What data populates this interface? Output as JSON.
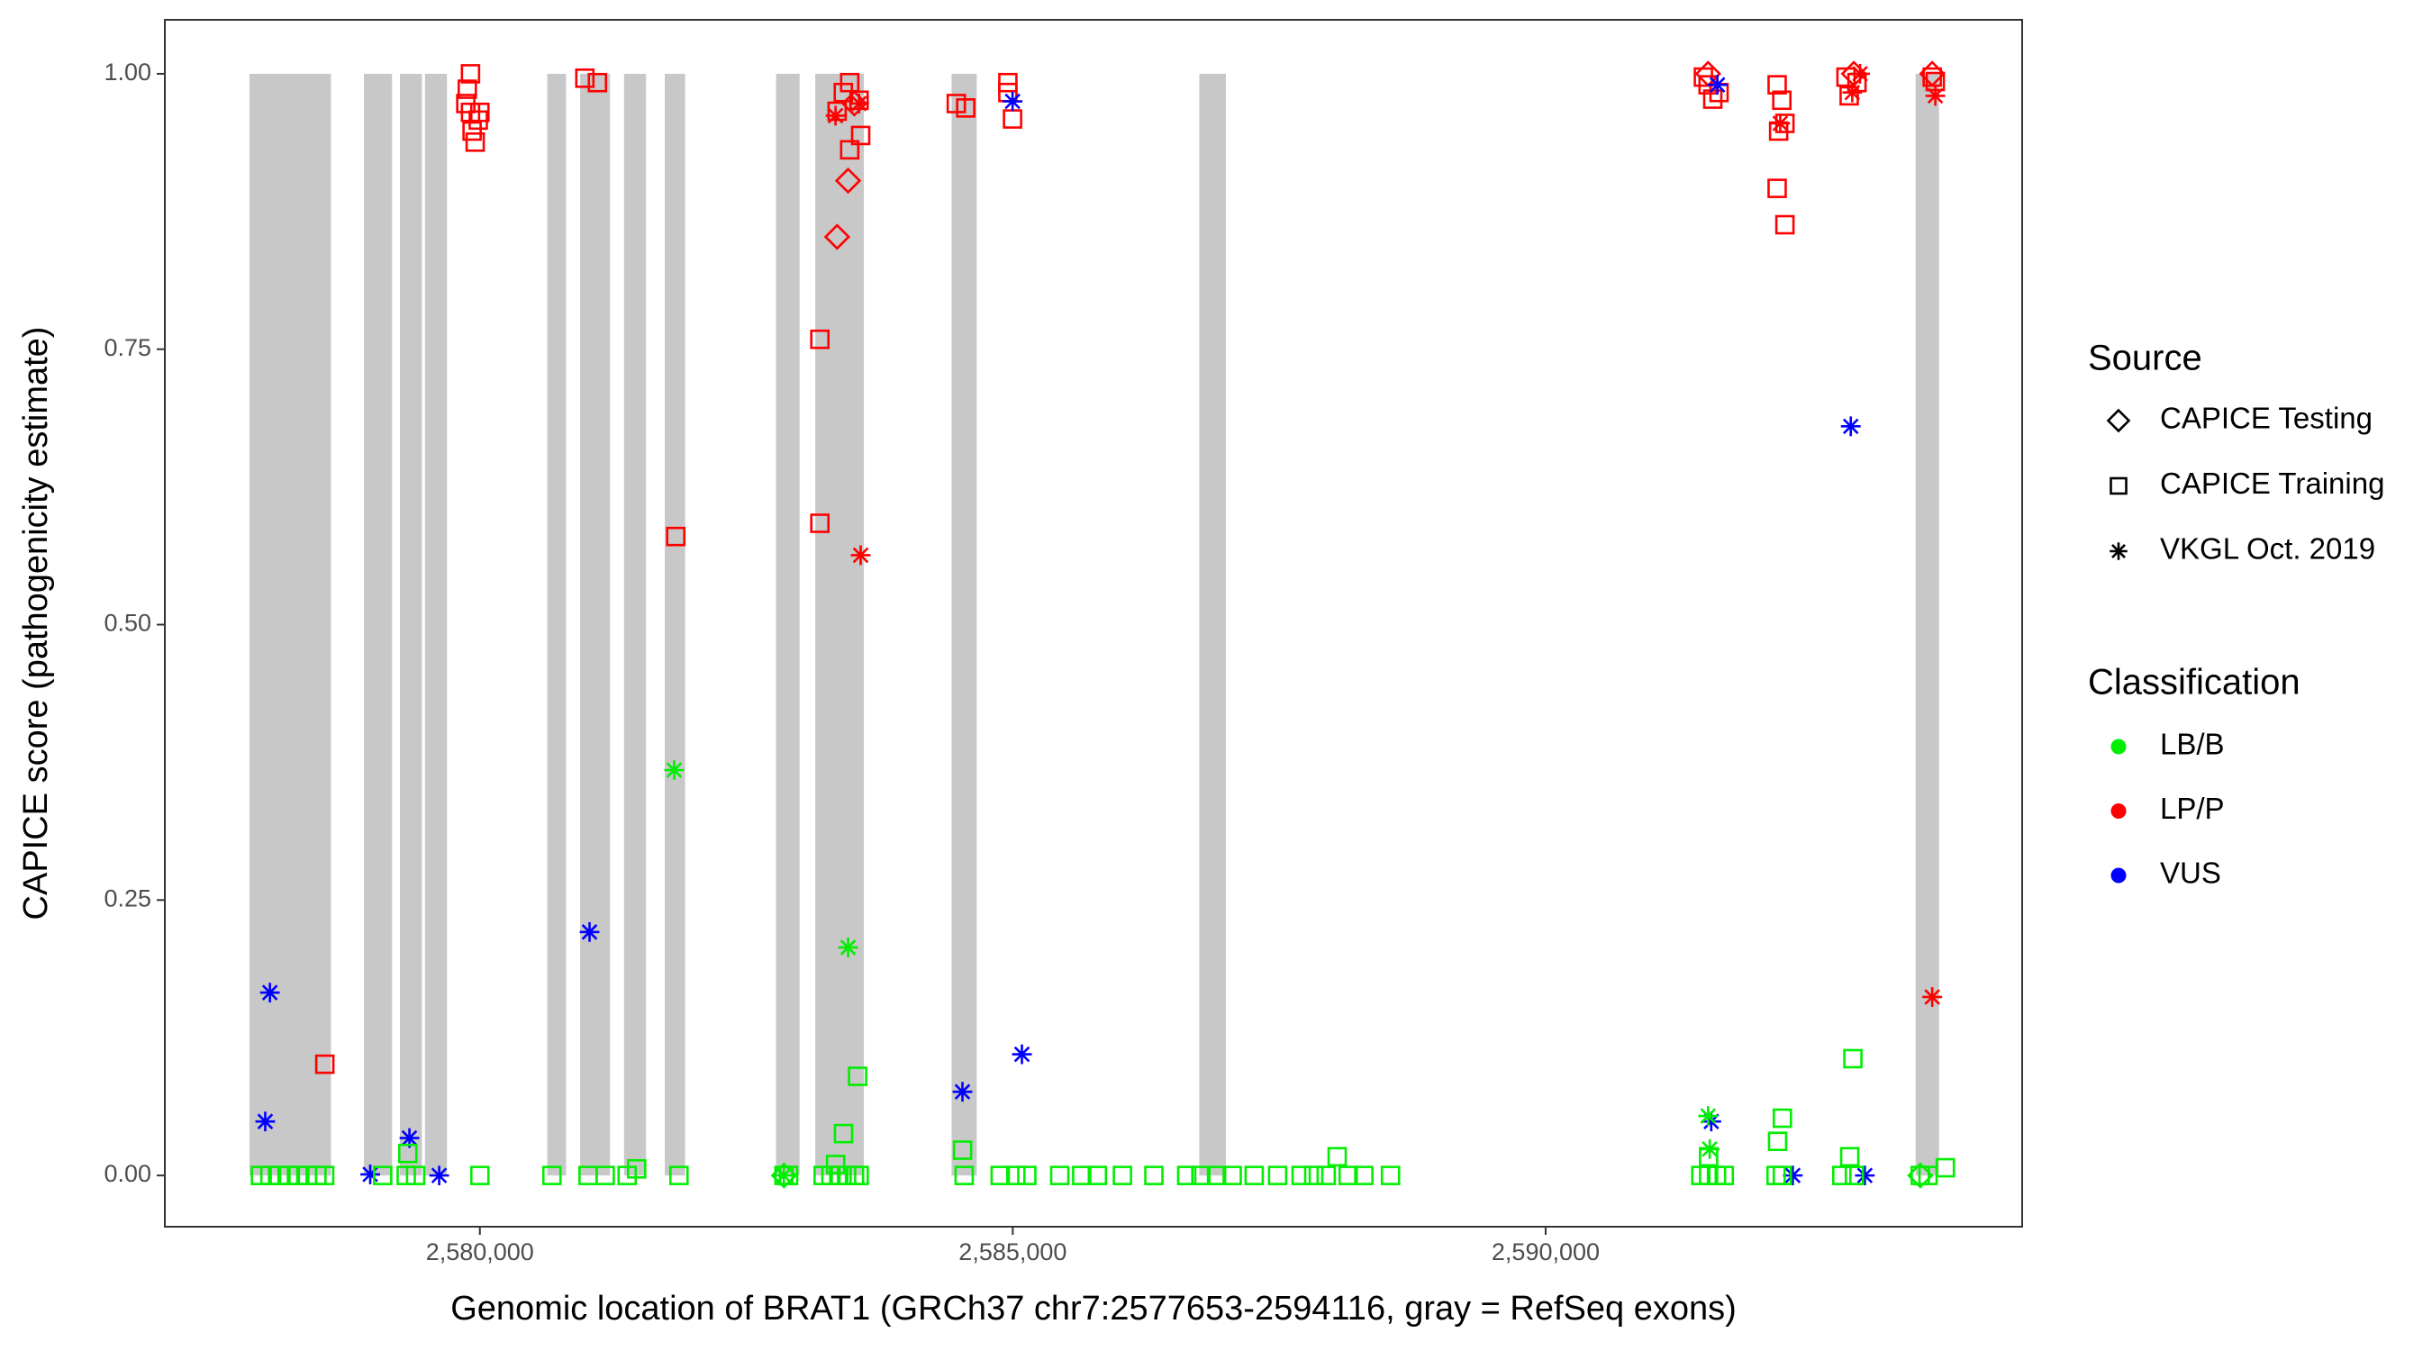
{
  "chart_data": {
    "type": "scatter",
    "xlabel": "Genomic location of BRAT1 (GRCh37 chr7:2577653-2594116, gray = RefSeq exons)",
    "ylabel": "CAPICE score (pathogenicity estimate)",
    "xlim": [
      2577044,
      2594471
    ],
    "ylim": [
      -0.0465,
      1.049
    ],
    "xticks": [
      {
        "value": 2580000,
        "label": "2,580,000"
      },
      {
        "value": 2585000,
        "label": "2,585,000"
      },
      {
        "value": 2590000,
        "label": "2,590,000"
      }
    ],
    "yticks": [
      {
        "value": 0,
        "label": "0.00"
      },
      {
        "value": 0.25,
        "label": "0.25"
      },
      {
        "value": 0.5,
        "label": "0.50"
      },
      {
        "value": 0.75,
        "label": "0.75"
      },
      {
        "value": 1,
        "label": "1.00"
      }
    ],
    "exon_color": "#c8c8c8",
    "exons": [
      [
        2577838,
        2578603
      ],
      [
        2578912,
        2579176
      ],
      [
        2579250,
        2579456
      ],
      [
        2579485,
        2579691
      ],
      [
        2580632,
        2580809
      ],
      [
        2580941,
        2581221
      ],
      [
        2581353,
        2581559
      ],
      [
        2581735,
        2581926
      ],
      [
        2582779,
        2583000
      ],
      [
        2583147,
        2583603
      ],
      [
        2584426,
        2584662
      ],
      [
        2586750,
        2587000
      ],
      [
        2593471,
        2593691
      ]
    ],
    "source_legend": {
      "title": "Source",
      "entries": [
        {
          "name": "CAPICE Testing",
          "shape": "diamond"
        },
        {
          "name": "CAPICE Training",
          "shape": "square"
        },
        {
          "name": "VKGL Oct. 2019",
          "shape": "asterisk"
        }
      ]
    },
    "classification_legend": {
      "title": "Classification",
      "entries": [
        {
          "name": "LB/B",
          "color": "#00ee00"
        },
        {
          "name": "LP/P",
          "color": "#ff0000"
        },
        {
          "name": "VUS",
          "color": "#0000ff"
        }
      ]
    },
    "series": [
      {
        "source": "CAPICE Training",
        "classification": "LP/P",
        "x": [
          2578545,
          2579912,
          2579882,
          2579868,
          2579912,
          2580000,
          2579985,
          2579927,
          2579956,
          2580985,
          2581103,
          2581838,
          2583190,
          2583190,
          2583410,
          2583470,
          2583558,
          2583573,
          2583470,
          2583352,
          2584470,
          2584559,
          2584954,
          2584954,
          2584998,
          2591480,
          2591524,
          2591627,
          2591568,
          2592172,
          2592216,
          2592245,
          2592172,
          2592245,
          2592186,
          2592818,
          2592921,
          2592848,
          2593627,
          2593656
        ],
        "values": [
          0.101,
          1.0,
          0.986,
          0.973,
          0.965,
          0.965,
          0.958,
          0.948,
          0.938,
          0.996,
          0.992,
          0.58,
          0.759,
          0.592,
          0.983,
          0.992,
          0.976,
          0.944,
          0.931,
          0.966,
          0.973,
          0.969,
          0.992,
          0.983,
          0.959,
          0.997,
          0.99,
          0.983,
          0.977,
          0.99,
          0.976,
          0.955,
          0.896,
          0.863,
          0.948,
          0.997,
          0.992,
          0.98,
          0.997,
          0.993
        ]
      },
      {
        "source": "CAPICE Testing",
        "classification": "LP/P",
        "x": [
          2583352,
          2583455,
          2583514,
          2591524,
          2592892,
          2593627
        ],
        "values": [
          0.852,
          0.903,
          0.973,
          1.0,
          1.0,
          1.0
        ]
      },
      {
        "source": "VKGL Oct. 2019",
        "classification": "LP/P",
        "x": [
          2583573,
          2583337,
          2583558,
          2592201,
          2592877,
          2592950,
          2593656,
          2593627
        ],
        "values": [
          0.563,
          0.962,
          0.973,
          0.955,
          0.983,
          1.0,
          0.98,
          0.162
        ]
      },
      {
        "source": "VKGL Oct. 2019",
        "classification": "VUS",
        "x": [
          2578030,
          2577986,
          2578971,
          2579339,
          2579618,
          2581029,
          2584998,
          2584528,
          2585086,
          2591554,
          2591612,
          2592319,
          2592863,
          2592995
        ],
        "values": [
          0.166,
          0.049,
          0.001,
          0.034,
          0,
          0.221,
          0.975,
          0.076,
          0.11,
          0.049,
          0.99,
          0,
          0.68,
          0
        ]
      },
      {
        "source": "VKGL Oct. 2019",
        "classification": "LB/B",
        "x": [
          2581823,
          2583455,
          2591524,
          2582852,
          2591539
        ],
        "values": [
          0.368,
          0.207,
          0.054,
          0,
          0.024
        ]
      },
      {
        "source": "CAPICE Training",
        "classification": "LB/B",
        "x": [
          2577941,
          2578030,
          2578118,
          2578206,
          2578294,
          2578382,
          2578471,
          2578544,
          2579088,
          2579309,
          2579397,
          2580000,
          2580676,
          2581015,
          2581176,
          2581382,
          2581868,
          2582853,
          2582897,
          2583221,
          2583294,
          2583368,
          2583441,
          2583515,
          2583559,
          2584544,
          2584882,
          2585029,
          2585132,
          2585441,
          2585647,
          2585794,
          2586029,
          2586324,
          2586632,
          2586765,
          2586912,
          2587059,
          2587265,
          2587485,
          2587706,
          2587824,
          2587941,
          2588147,
          2588294,
          2588544,
          2591456,
          2591529,
          2591603,
          2591676,
          2592162,
          2592221,
          2592779,
          2592897,
          2593515,
          2593588,
          2579324,
          2583412,
          2583544,
          2584529,
          2588044,
          2592221,
          2592176,
          2592883,
          2592853,
          2593750,
          2591529,
          2583338,
          2581471
        ],
        "values": [
          0,
          0,
          0,
          0,
          0,
          0,
          0,
          0,
          0,
          0,
          0,
          0,
          0,
          0,
          0,
          0,
          0,
          0,
          0,
          0,
          0,
          0,
          0,
          0,
          0,
          0,
          0,
          0,
          0,
          0,
          0,
          0,
          0,
          0,
          0,
          0,
          0,
          0,
          0,
          0,
          0,
          0,
          0,
          0,
          0,
          0,
          0,
          0,
          0,
          0,
          0,
          0,
          0,
          0,
          0,
          0,
          0.02,
          0.038,
          0.09,
          0.023,
          0.017,
          0.052,
          0.031,
          0.106,
          0.017,
          0.007,
          0.017,
          0.01,
          0.006
        ]
      },
      {
        "source": "CAPICE Testing",
        "classification": "LB/B",
        "x": [
          2593515,
          2582853
        ],
        "values": [
          0,
          0
        ]
      }
    ]
  }
}
